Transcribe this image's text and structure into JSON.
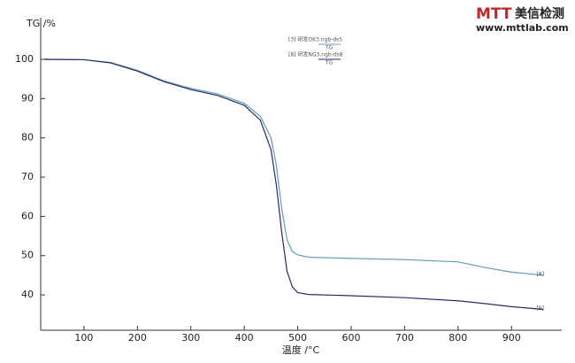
{
  "chart_data": {
    "type": "line",
    "y_label": "TG /%",
    "x_label": "温度 /°C",
    "x": [
      25,
      100,
      150,
      200,
      250,
      300,
      350,
      400,
      430,
      450,
      460,
      470,
      480,
      490,
      500,
      520,
      600,
      700,
      800,
      850,
      900,
      960
    ],
    "series": [
      {
        "name": "[3] 研发OK3.ngb-ds5",
        "signal": "TG",
        "end_label": "[8]",
        "color": "#5f9fb3",
        "values": [
          100,
          99.9,
          99.2,
          97.2,
          94.5,
          92.6,
          91.2,
          88.8,
          85.5,
          80,
          73,
          62,
          54,
          51,
          50.2,
          49.6,
          49.3,
          49,
          48.4,
          47,
          45.8,
          45
        ]
      },
      {
        "name": "[8] 研发NG3.ngb-ds8",
        "signal": "TG",
        "end_label": "[9]",
        "color": "#2b2a6e",
        "values": [
          100,
          99.9,
          99.1,
          97,
          94.3,
          92.3,
          90.8,
          88.3,
          84.5,
          77,
          68,
          56,
          46,
          42,
          40.6,
          40.1,
          39.8,
          39.3,
          38.5,
          37.8,
          37,
          36.3
        ]
      }
    ],
    "xlim": [
      19,
      994
    ],
    "xticks": [
      100,
      200,
      300,
      400,
      500,
      600,
      700,
      800,
      900
    ],
    "ylim": [
      31,
      110.6
    ],
    "yticks": [
      40,
      50,
      60,
      70,
      80,
      90,
      100
    ]
  },
  "watermark": {
    "logo": "MTT",
    "name": "美信检测",
    "url": "www.mttlab.com"
  }
}
